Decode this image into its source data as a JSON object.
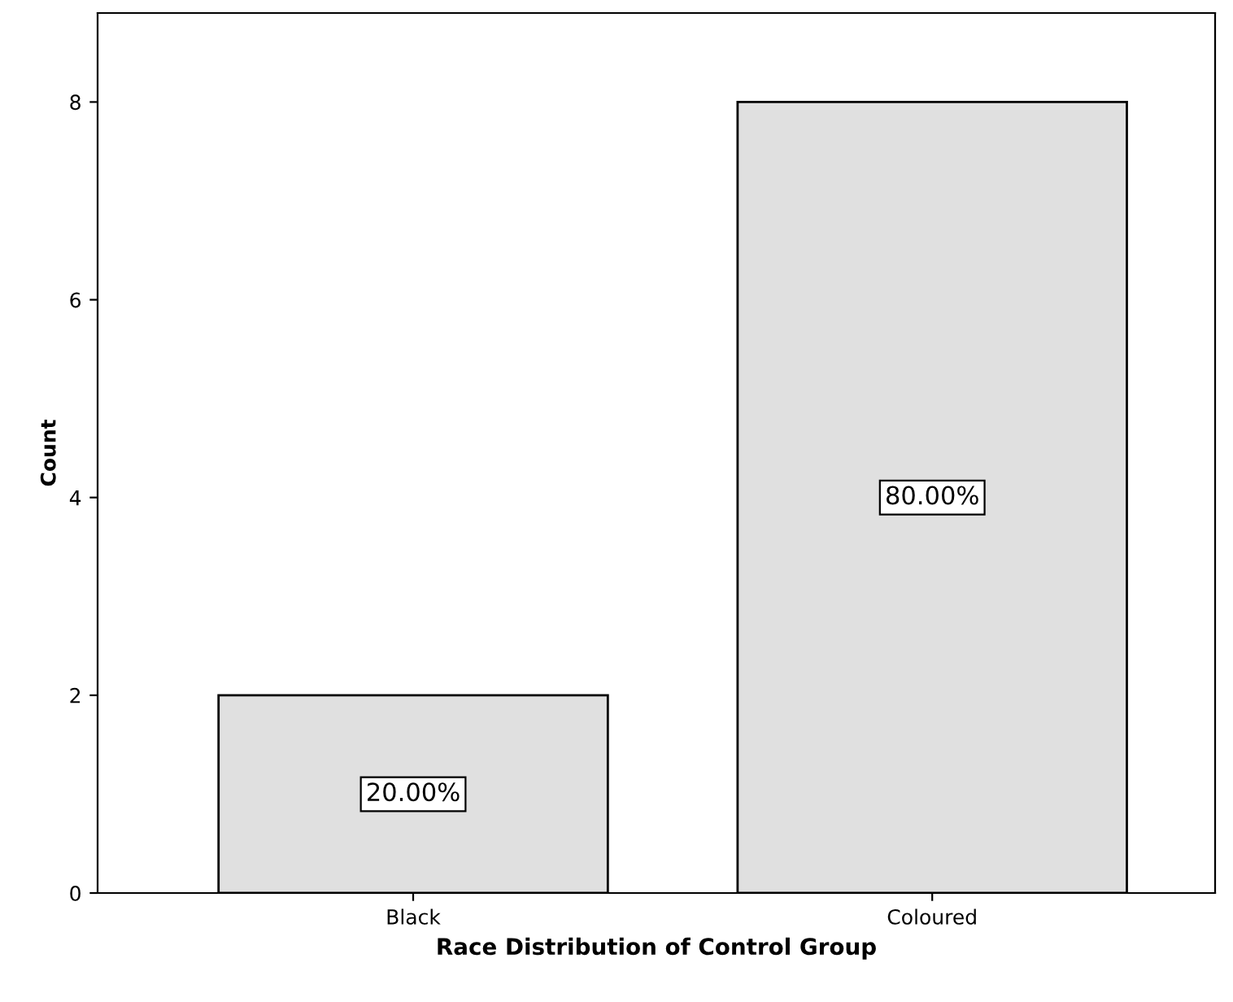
{
  "chart_data": {
    "type": "bar",
    "xlabel": "Race Distribution of Control Group",
    "ylabel": "Count",
    "categories": [
      "Black",
      "Coloured"
    ],
    "values": [
      2,
      8
    ],
    "annotations": [
      "20.00%",
      "80.00%"
    ],
    "color": "#e0e0e0",
    "ylim": [
      0,
      8.9
    ],
    "yticks": [
      0,
      2,
      4,
      6,
      8
    ],
    "grid": false
  }
}
